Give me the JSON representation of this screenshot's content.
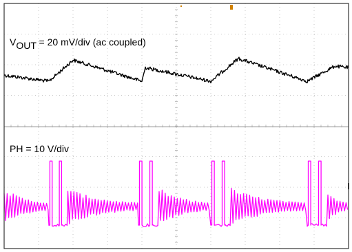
{
  "chart_data": [
    {
      "type": "line",
      "panel": "top",
      "annotation": {
        "prefix": "V",
        "subscript": "OUT",
        "suffix": " = 20 mV/div (ac coupled)"
      },
      "series": [
        {
          "color": "#000000",
          "description_points": [
            [
              0.0,
              0.4
            ],
            [
              0.13,
              0.0
            ],
            [
              0.2,
              1.4
            ],
            [
              0.4,
              0.0
            ],
            [
              0.41,
              0.9
            ],
            [
              0.6,
              0.0
            ],
            [
              0.68,
              1.5
            ],
            [
              0.88,
              0.0
            ],
            [
              0.96,
              1.0
            ],
            [
              1.0,
              0.9
            ]
          ]
        }
      ]
    },
    {
      "type": "line",
      "panel": "bottom",
      "annotation": "PH = 10 V/div",
      "series": [
        {
          "color": "#ff00ff",
          "pulse_bursts": [
            {
              "start": 0.13,
              "width": 0.055,
              "spikes": 2
            },
            {
              "start": 0.39,
              "width": 0.06,
              "spikes": 2
            },
            {
              "start": 0.6,
              "width": 0.06,
              "spikes": 2
            },
            {
              "start": 0.88,
              "width": 0.06,
              "spikes": 2
            }
          ]
        }
      ]
    }
  ]
}
